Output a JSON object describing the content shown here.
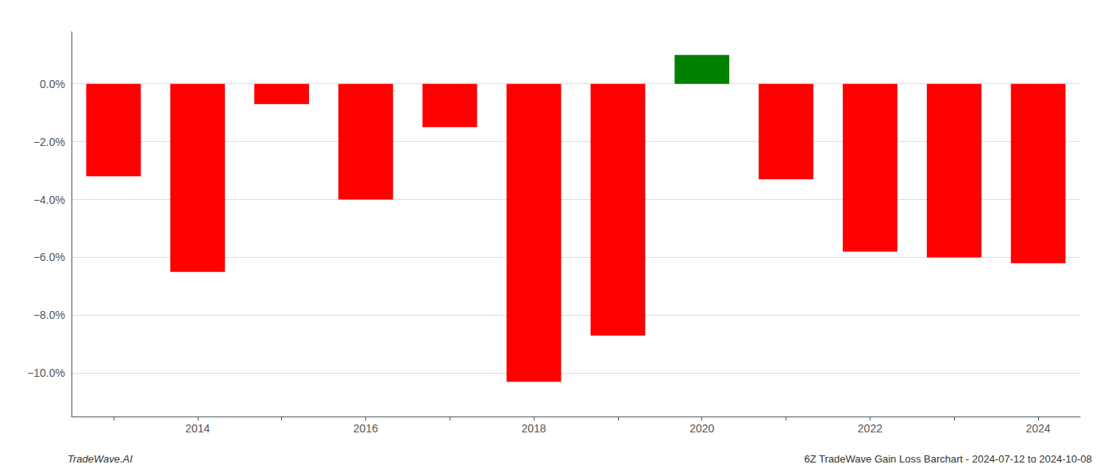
{
  "chart_data": {
    "type": "bar",
    "title": "6Z TradeWave Gain Loss Barchart - 2024-07-12 to 2024-10-08",
    "annotations": [
      "TradeWave.AI"
    ],
    "categories": [
      null,
      "2014",
      null,
      "2016",
      null,
      "2018",
      null,
      "2020",
      null,
      "2022",
      null,
      "2024"
    ],
    "values": [
      -3.2,
      -6.5,
      -0.7,
      -4.0,
      -1.5,
      -10.3,
      -8.7,
      1.0,
      -3.3,
      -5.8,
      -6.0,
      -6.2
    ],
    "colors": [
      "#ff0000",
      "#ff0000",
      "#ff0000",
      "#ff0000",
      "#ff0000",
      "#ff0000",
      "#ff0000",
      "#008000",
      "#ff0000",
      "#ff0000",
      "#ff0000",
      "#ff0000"
    ],
    "ylim": [
      -11.5,
      1.8
    ],
    "yticks": [
      {
        "value": 0.0,
        "label": "0.0%"
      },
      {
        "value": -2.0,
        "label": "−2.0%"
      },
      {
        "value": -4.0,
        "label": "−4.0%"
      },
      {
        "value": -6.0,
        "label": "−6.0%"
      },
      {
        "value": -8.0,
        "label": "−8.0%"
      },
      {
        "value": -10.0,
        "label": "−10.0%"
      }
    ],
    "grid": true
  }
}
